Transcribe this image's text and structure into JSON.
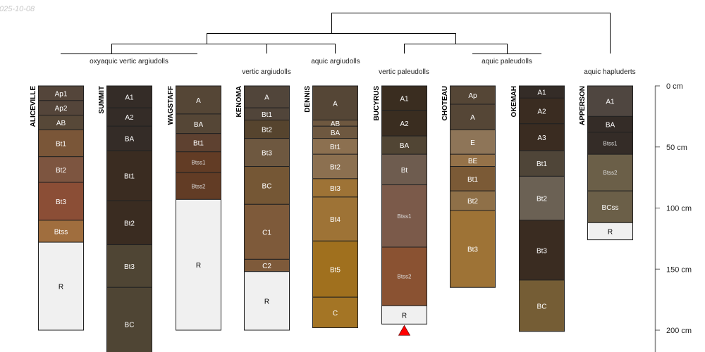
{
  "date_stamp": "025-10-08",
  "taxa": [
    {
      "label": "oxyaquic vertic argiudolls"
    },
    {
      "label": "vertic argiudolls"
    },
    {
      "label": "aquic argiudolls"
    },
    {
      "label": "vertic paleudolls"
    },
    {
      "label": "aquic paleudolls"
    },
    {
      "label": "aquic hapluderts"
    }
  ],
  "depth_axis": {
    "unit": "cm",
    "ticks": [
      "0 cm",
      "50 cm",
      "100 cm",
      "150 cm",
      "200 cm"
    ],
    "values": [
      0,
      50,
      100,
      150,
      200
    ]
  },
  "profiles": [
    {
      "name": "ALICEVILLE",
      "horizons": [
        {
          "name": "Ap1",
          "top": 0,
          "bottom": 12,
          "color": "#54453a"
        },
        {
          "name": "Ap2",
          "top": 12,
          "bottom": 24,
          "color": "#54453a"
        },
        {
          "name": "AB",
          "top": 24,
          "bottom": 36,
          "color": "#574838"
        },
        {
          "name": "Bt1",
          "top": 36,
          "bottom": 58,
          "color": "#7a5638"
        },
        {
          "name": "Bt2",
          "top": 58,
          "bottom": 79,
          "color": "#7d5540"
        },
        {
          "name": "Bt3",
          "top": 79,
          "bottom": 110,
          "color": "#8b4e36"
        },
        {
          "name": "Btss",
          "top": 110,
          "bottom": 128,
          "color": "#a06e3e"
        },
        {
          "name": "R",
          "top": 128,
          "bottom": 200,
          "color": "#f0f0f0"
        }
      ]
    },
    {
      "name": "SUMMIT",
      "horizons": [
        {
          "name": "A1",
          "top": 0,
          "bottom": 18,
          "color": "#342c27"
        },
        {
          "name": "A2",
          "top": 18,
          "bottom": 33,
          "color": "#342c27"
        },
        {
          "name": "BA",
          "top": 33,
          "bottom": 53,
          "color": "#342c27"
        },
        {
          "name": "Bt1",
          "top": 53,
          "bottom": 94,
          "color": "#3a2c21"
        },
        {
          "name": "Bt2",
          "top": 94,
          "bottom": 130,
          "color": "#3a2c21"
        },
        {
          "name": "Bt3",
          "top": 130,
          "bottom": 165,
          "color": "#4f4534"
        },
        {
          "name": "BC",
          "top": 165,
          "bottom": 225,
          "color": "#4f4534"
        }
      ]
    },
    {
      "name": "WAGSTAFF",
      "horizons": [
        {
          "name": "A",
          "top": 0,
          "bottom": 23,
          "color": "#554636"
        },
        {
          "name": "BA",
          "top": 23,
          "bottom": 39,
          "color": "#554636"
        },
        {
          "name": "Bt1",
          "top": 39,
          "bottom": 54,
          "color": "#5e4130"
        },
        {
          "name": "Btss1",
          "top": 54,
          "bottom": 71,
          "color": "#623c25"
        },
        {
          "name": "Btss2",
          "top": 71,
          "bottom": 93,
          "color": "#623c25"
        },
        {
          "name": "R",
          "top": 93,
          "bottom": 200,
          "color": "#f0f0f0"
        }
      ]
    },
    {
      "name": "KENOMA",
      "horizons": [
        {
          "name": "A",
          "top": 0,
          "bottom": 18,
          "color": "#51453a"
        },
        {
          "name": "Bt1",
          "top": 18,
          "bottom": 28,
          "color": "#51453a"
        },
        {
          "name": "Bt2",
          "top": 28,
          "bottom": 43,
          "color": "#56442e"
        },
        {
          "name": "Bt3",
          "top": 43,
          "bottom": 66,
          "color": "#6e5840"
        },
        {
          "name": "BC",
          "top": 66,
          "bottom": 97,
          "color": "#755735"
        },
        {
          "name": "C1",
          "top": 97,
          "bottom": 142,
          "color": "#7e5a3a"
        },
        {
          "name": "C2",
          "top": 142,
          "bottom": 152,
          "color": "#7e5a3a"
        },
        {
          "name": "R",
          "top": 152,
          "bottom": 200,
          "color": "#f0f0f0"
        }
      ]
    },
    {
      "name": "DENNIS",
      "horizons": [
        {
          "name": "A",
          "top": 0,
          "bottom": 28,
          "color": "#554636"
        },
        {
          "name": "AB",
          "top": 28,
          "bottom": 33,
          "color": "#6e5840"
        },
        {
          "name": "BA",
          "top": 33,
          "bottom": 43,
          "color": "#6e5840"
        },
        {
          "name": "Bt1",
          "top": 43,
          "bottom": 56,
          "color": "#8c7050"
        },
        {
          "name": "Bt2",
          "top": 56,
          "bottom": 76,
          "color": "#8c7050"
        },
        {
          "name": "Bt3",
          "top": 76,
          "bottom": 91,
          "color": "#9e7336"
        },
        {
          "name": "Bt4",
          "top": 91,
          "bottom": 127,
          "color": "#9e7336"
        },
        {
          "name": "Bt5",
          "top": 127,
          "bottom": 173,
          "color": "#a0701e"
        },
        {
          "name": "C",
          "top": 173,
          "bottom": 198,
          "color": "#a47525"
        }
      ]
    },
    {
      "name": "BUCYRUS",
      "marker": true,
      "horizons": [
        {
          "name": "A1",
          "top": 0,
          "bottom": 20,
          "color": "#3a2d20"
        },
        {
          "name": "A2",
          "top": 20,
          "bottom": 41,
          "color": "#3a2d20"
        },
        {
          "name": "BA",
          "top": 41,
          "bottom": 56,
          "color": "#514534"
        },
        {
          "name": "Bt",
          "top": 56,
          "bottom": 81,
          "color": "#6e5c4f"
        },
        {
          "name": "Btss1",
          "top": 81,
          "bottom": 132,
          "color": "#7b5a4a"
        },
        {
          "name": "Btss2",
          "top": 132,
          "bottom": 180,
          "color": "#8a5232"
        },
        {
          "name": "R",
          "top": 180,
          "bottom": 195,
          "color": "#f0f0f0"
        }
      ]
    },
    {
      "name": "CHOTEAU",
      "horizons": [
        {
          "name": "Ap",
          "top": 0,
          "bottom": 15,
          "color": "#554636"
        },
        {
          "name": "A",
          "top": 15,
          "bottom": 36,
          "color": "#554636"
        },
        {
          "name": "E",
          "top": 36,
          "bottom": 56,
          "color": "#8e7558"
        },
        {
          "name": "BE",
          "top": 56,
          "bottom": 66,
          "color": "#957249"
        },
        {
          "name": "Bt1",
          "top": 66,
          "bottom": 86,
          "color": "#7b5a36"
        },
        {
          "name": "Bt2",
          "top": 86,
          "bottom": 102,
          "color": "#8f7048"
        },
        {
          "name": "Bt3",
          "top": 102,
          "bottom": 165,
          "color": "#9e7336"
        }
      ]
    },
    {
      "name": "OKEMAH",
      "horizons": [
        {
          "name": "A1",
          "top": 0,
          "bottom": 10,
          "color": "#342c27"
        },
        {
          "name": "A2",
          "top": 10,
          "bottom": 31,
          "color": "#3a2c21"
        },
        {
          "name": "A3",
          "top": 31,
          "bottom": 53,
          "color": "#3a2c21"
        },
        {
          "name": "Bt1",
          "top": 53,
          "bottom": 74,
          "color": "#4f4538"
        },
        {
          "name": "Bt2",
          "top": 74,
          "bottom": 110,
          "color": "#6b6154"
        },
        {
          "name": "Bt3",
          "top": 110,
          "bottom": 159,
          "color": "#3a2c21"
        },
        {
          "name": "BC",
          "top": 159,
          "bottom": 201,
          "color": "#755d35"
        }
      ]
    },
    {
      "name": "APPERSON",
      "horizons": [
        {
          "name": "A1",
          "top": 0,
          "bottom": 25,
          "color": "#4f4640"
        },
        {
          "name": "BA",
          "top": 25,
          "bottom": 38,
          "color": "#342c27"
        },
        {
          "name": "Btss1",
          "top": 38,
          "bottom": 56,
          "color": "#342c27"
        },
        {
          "name": "Btss2",
          "top": 56,
          "bottom": 86,
          "color": "#6b5f48"
        },
        {
          "name": "BCss",
          "top": 86,
          "bottom": 112,
          "color": "#6b5f48"
        },
        {
          "name": "R",
          "top": 112,
          "bottom": 126,
          "color": "#f0f0f0"
        }
      ]
    }
  ],
  "colors": {
    "marker": "#ff0000",
    "line": "#000000",
    "axis": "#888888"
  }
}
